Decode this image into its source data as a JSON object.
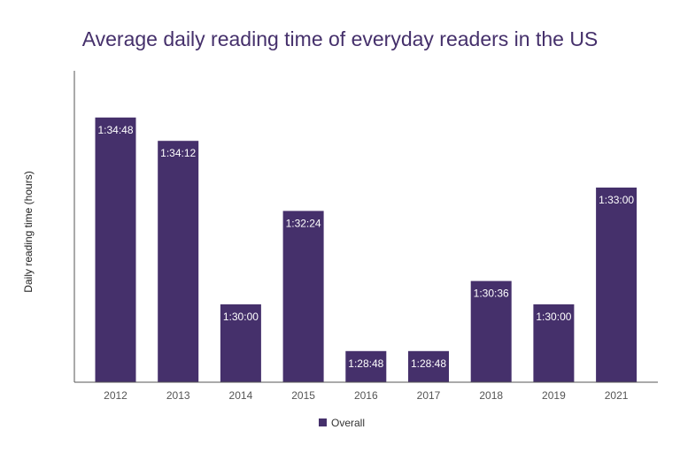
{
  "chart_data": {
    "type": "bar",
    "title": "Average daily reading time of everyday readers in the US",
    "xlabel": "",
    "ylabel": "Daily reading time (hours)",
    "categories": [
      "2012",
      "2013",
      "2014",
      "2015",
      "2016",
      "2017",
      "2018",
      "2019",
      "2021"
    ],
    "series": [
      {
        "name": "Overall",
        "values": [
          "1:34:48",
          "1:34:12",
          "1:30:00",
          "1:32:24",
          "1:28:48",
          "1:28:48",
          "1:30:36",
          "1:30:00",
          "1:33:00"
        ]
      }
    ],
    "ylim": [
      "1:28:00",
      "1:36:00"
    ],
    "grid": false,
    "legend": "bottom",
    "data_labels": true,
    "colors": {
      "bar": "#45306b",
      "title": "#45306b",
      "axis": "#555555"
    }
  }
}
